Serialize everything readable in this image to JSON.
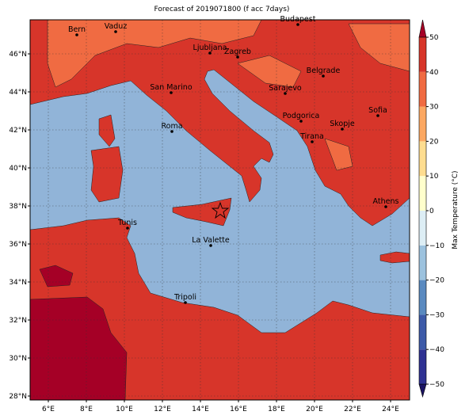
{
  "title": "Forecast of 2019071800 (f acc 7days)",
  "cities": [
    "Bern",
    "Vaduz",
    "Budapest",
    "Ljubljana",
    "Zagreb",
    "Belgrade",
    "Sarajevo",
    "San Marino",
    "Sofia",
    "Podgorica",
    "Skopje",
    "Roma",
    "Tirana",
    "Athens",
    "Tunis",
    "La Valette",
    "Tripoli"
  ],
  "lon_ticks": [
    {
      "value": 6,
      "label": "6°E"
    },
    {
      "value": 8,
      "label": "8°E"
    },
    {
      "value": 10,
      "label": "10°E"
    },
    {
      "value": 12,
      "label": "12°E"
    },
    {
      "value": 14,
      "label": "14°E"
    },
    {
      "value": 16,
      "label": "16°E"
    },
    {
      "value": 18,
      "label": "18°E"
    },
    {
      "value": 20,
      "label": "20°E"
    },
    {
      "value": 22,
      "label": "22°E"
    },
    {
      "value": 24,
      "label": "24°E"
    }
  ],
  "lat_ticks": [
    {
      "value": 28,
      "label": "28°N"
    },
    {
      "value": 30,
      "label": "30°N"
    },
    {
      "value": 32,
      "label": "32°N"
    },
    {
      "value": 34,
      "label": "34°N"
    },
    {
      "value": 36,
      "label": "36°N"
    },
    {
      "value": 38,
      "label": "38°N"
    },
    {
      "value": 40,
      "label": "40°N"
    },
    {
      "value": 42,
      "label": "42°N"
    },
    {
      "value": 44,
      "label": "44°N"
    },
    {
      "value": 46,
      "label": "46°N"
    }
  ],
  "colorbar": {
    "label": "Max Temperature (°C)",
    "ticks": [
      {
        "value": -50,
        "label": "−50"
      },
      {
        "value": -40,
        "label": "−40"
      },
      {
        "value": -30,
        "label": "−30"
      },
      {
        "value": -20,
        "label": "−20"
      },
      {
        "value": -10,
        "label": "−10"
      },
      0,
      10,
      20,
      30,
      40,
      50
    ],
    "colors": [
      "#1b1464",
      "#2e3192",
      "#3d5aa8",
      "#5a8ac0",
      "#9cc2de",
      "#ddeef5",
      "#ffffcc",
      "#fedd90",
      "#fca862",
      "#f06b42",
      "#d7352a",
      "#a50026"
    ]
  }
}
